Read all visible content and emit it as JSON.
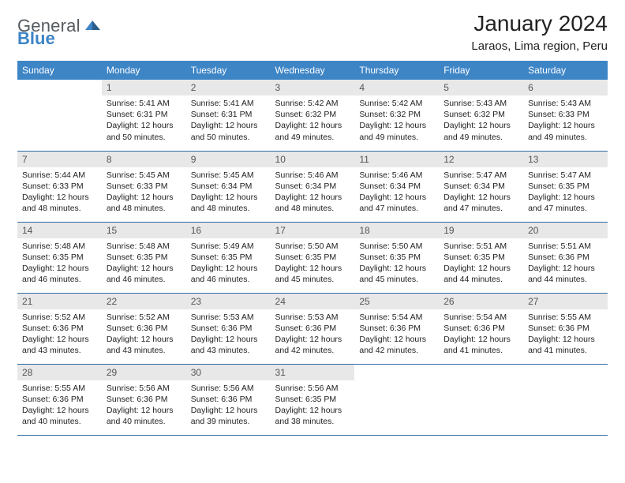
{
  "brand": {
    "word1": "General",
    "word2": "Blue"
  },
  "title": "January 2024",
  "location": "Laraos, Lima region, Peru",
  "colors": {
    "header_bg": "#3e85c6",
    "header_text": "#ffffff",
    "daynum_bg": "#e8e8e8",
    "rule": "#2f6aa0",
    "brand_gray": "#555b5f",
    "brand_blue": "#3e85c6",
    "body_text": "#222222",
    "background": "#ffffff"
  },
  "fonts": {
    "base_family": "Arial, Helvetica, sans-serif",
    "title_size_pt": 21,
    "location_size_pt": 11,
    "header_size_pt": 9,
    "cell_size_pt": 8
  },
  "day_headers": [
    "Sunday",
    "Monday",
    "Tuesday",
    "Wednesday",
    "Thursday",
    "Friday",
    "Saturday"
  ],
  "lead_blanks": 1,
  "days": [
    {
      "n": "1",
      "sunrise": "5:41 AM",
      "sunset": "6:31 PM",
      "daylight": "12 hours and 50 minutes."
    },
    {
      "n": "2",
      "sunrise": "5:41 AM",
      "sunset": "6:31 PM",
      "daylight": "12 hours and 50 minutes."
    },
    {
      "n": "3",
      "sunrise": "5:42 AM",
      "sunset": "6:32 PM",
      "daylight": "12 hours and 49 minutes."
    },
    {
      "n": "4",
      "sunrise": "5:42 AM",
      "sunset": "6:32 PM",
      "daylight": "12 hours and 49 minutes."
    },
    {
      "n": "5",
      "sunrise": "5:43 AM",
      "sunset": "6:32 PM",
      "daylight": "12 hours and 49 minutes."
    },
    {
      "n": "6",
      "sunrise": "5:43 AM",
      "sunset": "6:33 PM",
      "daylight": "12 hours and 49 minutes."
    },
    {
      "n": "7",
      "sunrise": "5:44 AM",
      "sunset": "6:33 PM",
      "daylight": "12 hours and 48 minutes."
    },
    {
      "n": "8",
      "sunrise": "5:45 AM",
      "sunset": "6:33 PM",
      "daylight": "12 hours and 48 minutes."
    },
    {
      "n": "9",
      "sunrise": "5:45 AM",
      "sunset": "6:34 PM",
      "daylight": "12 hours and 48 minutes."
    },
    {
      "n": "10",
      "sunrise": "5:46 AM",
      "sunset": "6:34 PM",
      "daylight": "12 hours and 48 minutes."
    },
    {
      "n": "11",
      "sunrise": "5:46 AM",
      "sunset": "6:34 PM",
      "daylight": "12 hours and 47 minutes."
    },
    {
      "n": "12",
      "sunrise": "5:47 AM",
      "sunset": "6:34 PM",
      "daylight": "12 hours and 47 minutes."
    },
    {
      "n": "13",
      "sunrise": "5:47 AM",
      "sunset": "6:35 PM",
      "daylight": "12 hours and 47 minutes."
    },
    {
      "n": "14",
      "sunrise": "5:48 AM",
      "sunset": "6:35 PM",
      "daylight": "12 hours and 46 minutes."
    },
    {
      "n": "15",
      "sunrise": "5:48 AM",
      "sunset": "6:35 PM",
      "daylight": "12 hours and 46 minutes."
    },
    {
      "n": "16",
      "sunrise": "5:49 AM",
      "sunset": "6:35 PM",
      "daylight": "12 hours and 46 minutes."
    },
    {
      "n": "17",
      "sunrise": "5:50 AM",
      "sunset": "6:35 PM",
      "daylight": "12 hours and 45 minutes."
    },
    {
      "n": "18",
      "sunrise": "5:50 AM",
      "sunset": "6:35 PM",
      "daylight": "12 hours and 45 minutes."
    },
    {
      "n": "19",
      "sunrise": "5:51 AM",
      "sunset": "6:35 PM",
      "daylight": "12 hours and 44 minutes."
    },
    {
      "n": "20",
      "sunrise": "5:51 AM",
      "sunset": "6:36 PM",
      "daylight": "12 hours and 44 minutes."
    },
    {
      "n": "21",
      "sunrise": "5:52 AM",
      "sunset": "6:36 PM",
      "daylight": "12 hours and 43 minutes."
    },
    {
      "n": "22",
      "sunrise": "5:52 AM",
      "sunset": "6:36 PM",
      "daylight": "12 hours and 43 minutes."
    },
    {
      "n": "23",
      "sunrise": "5:53 AM",
      "sunset": "6:36 PM",
      "daylight": "12 hours and 43 minutes."
    },
    {
      "n": "24",
      "sunrise": "5:53 AM",
      "sunset": "6:36 PM",
      "daylight": "12 hours and 42 minutes."
    },
    {
      "n": "25",
      "sunrise": "5:54 AM",
      "sunset": "6:36 PM",
      "daylight": "12 hours and 42 minutes."
    },
    {
      "n": "26",
      "sunrise": "5:54 AM",
      "sunset": "6:36 PM",
      "daylight": "12 hours and 41 minutes."
    },
    {
      "n": "27",
      "sunrise": "5:55 AM",
      "sunset": "6:36 PM",
      "daylight": "12 hours and 41 minutes."
    },
    {
      "n": "28",
      "sunrise": "5:55 AM",
      "sunset": "6:36 PM",
      "daylight": "12 hours and 40 minutes."
    },
    {
      "n": "29",
      "sunrise": "5:56 AM",
      "sunset": "6:36 PM",
      "daylight": "12 hours and 40 minutes."
    },
    {
      "n": "30",
      "sunrise": "5:56 AM",
      "sunset": "6:36 PM",
      "daylight": "12 hours and 39 minutes."
    },
    {
      "n": "31",
      "sunrise": "5:56 AM",
      "sunset": "6:35 PM",
      "daylight": "12 hours and 38 minutes."
    }
  ],
  "labels": {
    "sunrise": "Sunrise:",
    "sunset": "Sunset:",
    "daylight": "Daylight:"
  }
}
